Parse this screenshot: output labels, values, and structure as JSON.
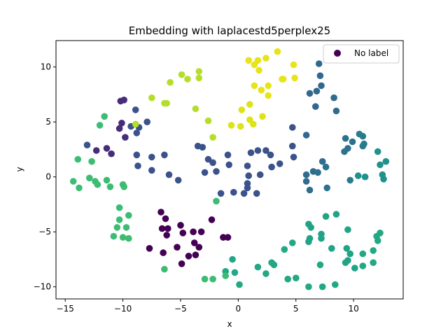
{
  "chart_data": {
    "type": "scatter",
    "title": "Embedding with laplacestd5perplex25",
    "xlabel": "x",
    "ylabel": "y",
    "xlim": [
      -15.8,
      14.3
    ],
    "ylim": [
      -11.1,
      12.4
    ],
    "xticks": [
      -15,
      -10,
      -5,
      0,
      5,
      10
    ],
    "yticks": [
      -10,
      -5,
      0,
      5,
      10
    ],
    "grid": false,
    "legend": {
      "location": "upper right",
      "entries": [
        "No label"
      ],
      "marker_color": "#440154"
    },
    "series": [
      {
        "name": "No label",
        "points": [
          {
            "x": -9.9,
            "y": 7.0,
            "c": "#472c7a"
          },
          {
            "x": -10.2,
            "y": 6.9,
            "c": "#472c7a"
          },
          {
            "x": -10.1,
            "y": 4.9,
            "c": "#472c7a"
          },
          {
            "x": -10.3,
            "y": 4.4,
            "c": "#472c7a"
          },
          {
            "x": -9.8,
            "y": 3.6,
            "c": "#472c7a"
          },
          {
            "x": -12.3,
            "y": 2.4,
            "c": "#472c7a"
          },
          {
            "x": -11.4,
            "y": 2.6,
            "c": "#472c7a"
          },
          {
            "x": -11.0,
            "y": 2.1,
            "c": "#472c7a"
          },
          {
            "x": -13.1,
            "y": 2.9,
            "c": "#3b528b"
          },
          {
            "x": -8.9,
            "y": 6.1,
            "c": "#3b528b"
          },
          {
            "x": -9.3,
            "y": 4.6,
            "c": "#3b528b"
          },
          {
            "x": -8.6,
            "y": 4.5,
            "c": "#3b528b"
          },
          {
            "x": -8.8,
            "y": 4.0,
            "c": "#3b528b"
          },
          {
            "x": -7.9,
            "y": 5.0,
            "c": "#3b528b"
          },
          {
            "x": -8.8,
            "y": 2.0,
            "c": "#3b528b"
          },
          {
            "x": -8.7,
            "y": 1.0,
            "c": "#3b528b"
          },
          {
            "x": -7.5,
            "y": 1.8,
            "c": "#3b528b"
          },
          {
            "x": -7.5,
            "y": 0.6,
            "c": "#3b528b"
          },
          {
            "x": -6.4,
            "y": 2.0,
            "c": "#3b528b"
          },
          {
            "x": -6.0,
            "y": 0.2,
            "c": "#3b528b"
          },
          {
            "x": -5.2,
            "y": -0.3,
            "c": "#3b528b"
          },
          {
            "x": -3.5,
            "y": 2.8,
            "c": "#3b528b"
          },
          {
            "x": -3.1,
            "y": 2.7,
            "c": "#3b528b"
          },
          {
            "x": -2.6,
            "y": 1.6,
            "c": "#3b528b"
          },
          {
            "x": -2.2,
            "y": 1.3,
            "c": "#3b528b"
          },
          {
            "x": -2.9,
            "y": 0.4,
            "c": "#3b528b"
          },
          {
            "x": -1.9,
            "y": 0.5,
            "c": "#3b528b"
          },
          {
            "x": -1.5,
            "y": -1.5,
            "c": "#3b528b"
          },
          {
            "x": -0.8,
            "y": 1.1,
            "c": "#3b528b"
          },
          {
            "x": -0.9,
            "y": 2.0,
            "c": "#3b528b"
          },
          {
            "x": -0.4,
            "y": -1.4,
            "c": "#3b528b"
          },
          {
            "x": 0.8,
            "y": -0.6,
            "c": "#3b528b"
          },
          {
            "x": 0.8,
            "y": -1.0,
            "c": "#3b528b"
          },
          {
            "x": 0.5,
            "y": -1.5,
            "c": "#3b528b"
          },
          {
            "x": 1.6,
            "y": -1.5,
            "c": "#3b528b"
          },
          {
            "x": 0.9,
            "y": 0.1,
            "c": "#3b528b"
          },
          {
            "x": 1.9,
            "y": 0.2,
            "c": "#3b528b"
          },
          {
            "x": 1.1,
            "y": 2.2,
            "c": "#3b528b"
          },
          {
            "x": 1.7,
            "y": 2.4,
            "c": "#3b528b"
          },
          {
            "x": 2.4,
            "y": 2.4,
            "c": "#3b528b"
          },
          {
            "x": 2.8,
            "y": 2.0,
            "c": "#3b528b"
          },
          {
            "x": 0.8,
            "y": 1.0,
            "c": "#3b528b"
          },
          {
            "x": 2.9,
            "y": 0.9,
            "c": "#3b528b"
          },
          {
            "x": 3.6,
            "y": 1.2,
            "c": "#3b528b"
          },
          {
            "x": 4.7,
            "y": 2.8,
            "c": "#3b528b"
          },
          {
            "x": 4.7,
            "y": 4.5,
            "c": "#3b528b"
          },
          {
            "x": 4.8,
            "y": 1.8,
            "c": "#3b528b"
          },
          {
            "x": 5.9,
            "y": 3.8,
            "c": "#31688e"
          },
          {
            "x": 6.2,
            "y": 7.6,
            "c": "#31688e"
          },
          {
            "x": 6.7,
            "y": 6.4,
            "c": "#31688e"
          },
          {
            "x": 6.8,
            "y": 7.8,
            "c": "#31688e"
          },
          {
            "x": 7.0,
            "y": 10.3,
            "c": "#31688e"
          },
          {
            "x": 7.1,
            "y": 9.2,
            "c": "#31688e"
          },
          {
            "x": 7.2,
            "y": 8.3,
            "c": "#31688e"
          },
          {
            "x": 8.3,
            "y": 7.2,
            "c": "#2f6c8e"
          },
          {
            "x": 8.5,
            "y": 6.0,
            "c": "#2f6c8e"
          },
          {
            "x": 5.9,
            "y": 0.2,
            "c": "#2f6c8e"
          },
          {
            "x": 5.9,
            "y": -0.4,
            "c": "#2f6c8e"
          },
          {
            "x": 6.5,
            "y": 0.5,
            "c": "#2f6c8e"
          },
          {
            "x": 6.2,
            "y": -1.2,
            "c": "#2f6c8e"
          },
          {
            "x": 7.3,
            "y": 1.4,
            "c": "#2f6c8e"
          },
          {
            "x": 7.6,
            "y": 0.9,
            "c": "#2c728e"
          },
          {
            "x": 6.9,
            "y": 0.4,
            "c": "#2c728e"
          },
          {
            "x": 7.7,
            "y": -1.0,
            "c": "#2c728e"
          },
          {
            "x": 9.3,
            "y": 3.5,
            "c": "#2c728e"
          },
          {
            "x": 9.9,
            "y": 3.2,
            "c": "#2c728e"
          },
          {
            "x": 9.5,
            "y": 2.6,
            "c": "#2c728e"
          },
          {
            "x": 9.2,
            "y": 2.3,
            "c": "#2c728e"
          },
          {
            "x": 10.5,
            "y": 3.9,
            "c": "#287c8e"
          },
          {
            "x": 10.8,
            "y": 3.7,
            "c": "#287c8e"
          },
          {
            "x": 10.9,
            "y": 3.0,
            "c": "#287c8e"
          },
          {
            "x": 10.8,
            "y": 2.8,
            "c": "#287c8e"
          },
          {
            "x": 9.7,
            "y": -0.3,
            "c": "#287c8e"
          },
          {
            "x": 10.4,
            "y": 0.1,
            "c": "#21918c"
          },
          {
            "x": 11.0,
            "y": 0.0,
            "c": "#21918c"
          },
          {
            "x": 12.1,
            "y": 2.3,
            "c": "#21918c"
          },
          {
            "x": 12.3,
            "y": 1.1,
            "c": "#21918c"
          },
          {
            "x": 12.8,
            "y": 1.4,
            "c": "#21918c"
          },
          {
            "x": 12.5,
            "y": 0.2,
            "c": "#21918c"
          },
          {
            "x": 12.6,
            "y": -0.2,
            "c": "#21918c"
          },
          {
            "x": 6.1,
            "y": -4.3,
            "c": "#20a386"
          },
          {
            "x": 6.3,
            "y": -4.6,
            "c": "#20a386"
          },
          {
            "x": 6.2,
            "y": -5.6,
            "c": "#20a386"
          },
          {
            "x": 6.1,
            "y": -5.9,
            "c": "#20a386"
          },
          {
            "x": 7.2,
            "y": -5.2,
            "c": "#20a386"
          },
          {
            "x": 7.2,
            "y": -5.6,
            "c": "#20a386"
          },
          {
            "x": 7.6,
            "y": -3.6,
            "c": "#20a386"
          },
          {
            "x": 8.5,
            "y": -3.4,
            "c": "#20a386"
          },
          {
            "x": 9.5,
            "y": -4.8,
            "c": "#20a386"
          },
          {
            "x": 8.1,
            "y": -6.5,
            "c": "#20a386"
          },
          {
            "x": 9.4,
            "y": -6.5,
            "c": "#20a386"
          },
          {
            "x": 9.5,
            "y": -7.6,
            "c": "#20a386"
          },
          {
            "x": 9.7,
            "y": -7.0,
            "c": "#20a386"
          },
          {
            "x": 9.3,
            "y": -7.8,
            "c": "#20a386"
          },
          {
            "x": 10.1,
            "y": -8.3,
            "c": "#20a386"
          },
          {
            "x": 10.8,
            "y": -7.0,
            "c": "#22a884"
          },
          {
            "x": 10.8,
            "y": -8.1,
            "c": "#22a884"
          },
          {
            "x": 11.7,
            "y": -6.7,
            "c": "#22a884"
          },
          {
            "x": 11.7,
            "y": -7.8,
            "c": "#22a884"
          },
          {
            "x": 12.0,
            "y": -5.4,
            "c": "#22a884"
          },
          {
            "x": 12.3,
            "y": -5.1,
            "c": "#22a884"
          },
          {
            "x": 12.1,
            "y": -5.8,
            "c": "#22a884"
          },
          {
            "x": 7.1,
            "y": -8.0,
            "c": "#22a884"
          },
          {
            "x": 8.4,
            "y": -9.8,
            "c": "#22a884"
          },
          {
            "x": 7.3,
            "y": -10.0,
            "c": "#22a884"
          },
          {
            "x": 6.1,
            "y": -10.0,
            "c": "#22a884"
          },
          {
            "x": 5.0,
            "y": -9.2,
            "c": "#22a884"
          },
          {
            "x": 4.3,
            "y": -9.3,
            "c": "#22a884"
          },
          {
            "x": 4.0,
            "y": -6.6,
            "c": "#22a884"
          },
          {
            "x": 4.7,
            "y": -6.0,
            "c": "#22a884"
          },
          {
            "x": 2.9,
            "y": -7.8,
            "c": "#22a884"
          },
          {
            "x": 3.1,
            "y": -8.0,
            "c": "#22a884"
          },
          {
            "x": 2.4,
            "y": -8.8,
            "c": "#22a884"
          },
          {
            "x": 1.7,
            "y": -8.2,
            "c": "#22a884"
          },
          {
            "x": 0.1,
            "y": -9.8,
            "c": "#22a884"
          },
          {
            "x": -0.5,
            "y": -7.5,
            "c": "#22a884"
          },
          {
            "x": -0.3,
            "y": -8.7,
            "c": "#22a884"
          },
          {
            "x": -1.1,
            "y": -8.6,
            "c": "#22a884"
          },
          {
            "x": -1.1,
            "y": -9.0,
            "c": "#3dbc74"
          },
          {
            "x": -2.2,
            "y": -9.3,
            "c": "#3dbc74"
          },
          {
            "x": -2.9,
            "y": -9.3,
            "c": "#3dbc74"
          },
          {
            "x": -6.4,
            "y": -8.4,
            "c": "#3dbc74"
          },
          {
            "x": -1.9,
            "y": -2.2,
            "c": "#3dbc74"
          },
          {
            "x": -14.3,
            "y": -0.4,
            "c": "#3dbc74"
          },
          {
            "x": -13.8,
            "y": -1.0,
            "c": "#3dbc74"
          },
          {
            "x": -12.9,
            "y": -0.1,
            "c": "#3dbc74"
          },
          {
            "x": -12.4,
            "y": -0.4,
            "c": "#3dbc74"
          },
          {
            "x": -12.2,
            "y": -0.7,
            "c": "#3dbc74"
          },
          {
            "x": -11.4,
            "y": -0.3,
            "c": "#3dbc74"
          },
          {
            "x": -11.1,
            "y": -0.9,
            "c": "#3dbc74"
          },
          {
            "x": -10.0,
            "y": -0.7,
            "c": "#3dbc74"
          },
          {
            "x": -9.9,
            "y": -0.9,
            "c": "#3dbc74"
          },
          {
            "x": -13.9,
            "y": 1.6,
            "c": "#3dbc74"
          },
          {
            "x": -12.7,
            "y": 1.4,
            "c": "#3dbc74"
          },
          {
            "x": -12.0,
            "y": 4.7,
            "c": "#3dbc74"
          },
          {
            "x": -11.6,
            "y": 5.5,
            "c": "#3dbc74"
          },
          {
            "x": -10.3,
            "y": -2.8,
            "c": "#3dbc74"
          },
          {
            "x": -9.5,
            "y": -3.5,
            "c": "#3dbc74"
          },
          {
            "x": -10.3,
            "y": -3.9,
            "c": "#3dbc74"
          },
          {
            "x": -10.5,
            "y": -4.6,
            "c": "#3dbc74"
          },
          {
            "x": -9.7,
            "y": -4.6,
            "c": "#3dbc74"
          },
          {
            "x": -10.8,
            "y": -5.4,
            "c": "#3dbc74"
          },
          {
            "x": -10.0,
            "y": -5.5,
            "c": "#3dbc74"
          },
          {
            "x": -9.5,
            "y": -5.6,
            "c": "#3dbc74"
          },
          {
            "x": -6.7,
            "y": -3.2,
            "c": "#440154"
          },
          {
            "x": -6.3,
            "y": -3.8,
            "c": "#440154"
          },
          {
            "x": -6.6,
            "y": -4.7,
            "c": "#440154"
          },
          {
            "x": -6.1,
            "y": -4.7,
            "c": "#440154"
          },
          {
            "x": -6.2,
            "y": -5.3,
            "c": "#440154"
          },
          {
            "x": -5.0,
            "y": -4.4,
            "c": "#440154"
          },
          {
            "x": -4.8,
            "y": -5.1,
            "c": "#440154"
          },
          {
            "x": -3.9,
            "y": -5.0,
            "c": "#440154"
          },
          {
            "x": -3.2,
            "y": -5.0,
            "c": "#440154"
          },
          {
            "x": -3.8,
            "y": -6.0,
            "c": "#440154"
          },
          {
            "x": -3.4,
            "y": -6.4,
            "c": "#440154"
          },
          {
            "x": -4.3,
            "y": -7.2,
            "c": "#440154"
          },
          {
            "x": -3.7,
            "y": -7.1,
            "c": "#440154"
          },
          {
            "x": -5.3,
            "y": -6.4,
            "c": "#440154"
          },
          {
            "x": -4.9,
            "y": -7.9,
            "c": "#440154"
          },
          {
            "x": -6.5,
            "y": -6.9,
            "c": "#440154"
          },
          {
            "x": -7.7,
            "y": -6.5,
            "c": "#440154"
          },
          {
            "x": -2.3,
            "y": -3.9,
            "c": "#440154"
          },
          {
            "x": -1.3,
            "y": -5.5,
            "c": "#440154"
          },
          {
            "x": -0.9,
            "y": -5.5,
            "c": "#440154"
          },
          {
            "x": -8.9,
            "y": 4.8,
            "c": "#b5de2b"
          },
          {
            "x": -7.5,
            "y": 7.2,
            "c": "#b5de2b"
          },
          {
            "x": -6.4,
            "y": 6.7,
            "c": "#b5de2b"
          },
          {
            "x": -6.2,
            "y": 6.7,
            "c": "#b5de2b"
          },
          {
            "x": -5.9,
            "y": 8.6,
            "c": "#b5de2b"
          },
          {
            "x": -4.9,
            "y": 9.3,
            "c": "#b5de2b"
          },
          {
            "x": -4.4,
            "y": 8.9,
            "c": "#b5de2b"
          },
          {
            "x": -3.4,
            "y": 9.6,
            "c": "#b5de2b"
          },
          {
            "x": -3.4,
            "y": 9.0,
            "c": "#b5de2b"
          },
          {
            "x": -3.7,
            "y": 6.2,
            "c": "#b5de2b"
          },
          {
            "x": -2.6,
            "y": 5.1,
            "c": "#b5de2b"
          },
          {
            "x": -2.2,
            "y": 3.6,
            "c": "#b5de2b"
          },
          {
            "x": -0.6,
            "y": 4.7,
            "c": "#dde318"
          },
          {
            "x": 0.2,
            "y": 4.6,
            "c": "#dde318"
          },
          {
            "x": 0.3,
            "y": 6.1,
            "c": "#dde318"
          },
          {
            "x": 1.0,
            "y": 6.6,
            "c": "#dde318"
          },
          {
            "x": 1.0,
            "y": 5.2,
            "c": "#dde318"
          },
          {
            "x": 1.3,
            "y": 4.8,
            "c": "#dde318"
          },
          {
            "x": 2.1,
            "y": 5.5,
            "c": "#dde318"
          },
          {
            "x": 0.9,
            "y": 10.6,
            "c": "#e7e419"
          },
          {
            "x": 1.7,
            "y": 10.6,
            "c": "#e7e419"
          },
          {
            "x": 1.8,
            "y": 9.7,
            "c": "#e7e419"
          },
          {
            "x": 2.4,
            "y": 10.8,
            "c": "#e7e419"
          },
          {
            "x": 1.4,
            "y": 10.2,
            "c": "#e7e419"
          },
          {
            "x": 1.4,
            "y": 8.3,
            "c": "#e7e419"
          },
          {
            "x": 2.0,
            "y": 7.9,
            "c": "#e7e419"
          },
          {
            "x": 2.6,
            "y": 8.3,
            "c": "#e7e419"
          },
          {
            "x": 2.6,
            "y": 7.4,
            "c": "#e7e419"
          },
          {
            "x": 3.4,
            "y": 11.4,
            "c": "#e7e419"
          },
          {
            "x": 3.8,
            "y": 8.9,
            "c": "#e7e419"
          },
          {
            "x": 3.9,
            "y": 8.9,
            "c": "#e7e419"
          },
          {
            "x": 4.8,
            "y": 10.2,
            "c": "#e7e419"
          },
          {
            "x": 4.9,
            "y": 9.0,
            "c": "#e7e419"
          }
        ]
      }
    ]
  }
}
